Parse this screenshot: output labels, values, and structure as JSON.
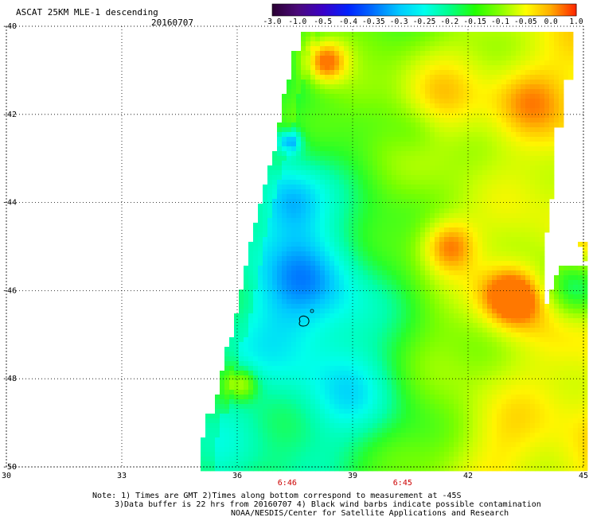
{
  "header": {
    "title": "ASCAT 25KM MLE-1 descending",
    "date": "20160707"
  },
  "colorbar": {
    "labels": [
      "-3.0",
      "-1.0",
      "-0.5",
      "-0.4",
      "-0.35",
      "-0.3",
      "-0.25",
      "-0.2",
      "-0.15",
      "-0.1",
      "-0.05",
      "0.0",
      "1.0"
    ],
    "colors": [
      "#2a0033",
      "#4b0a7a",
      "#3a00c8",
      "#0022ff",
      "#0070ff",
      "#00c8ff",
      "#00ffee",
      "#00ff88",
      "#22ff00",
      "#88ff00",
      "#ffff00",
      "#ffaa00",
      "#ff2200"
    ]
  },
  "map": {
    "lon_range": [
      30,
      45
    ],
    "lat_range": [
      -50,
      -40
    ],
    "lon_ticks": [
      "30",
      "33",
      "36",
      "39",
      "42",
      "45"
    ],
    "lat_ticks": [
      "-40",
      "-42",
      "-44",
      "-46",
      "-48",
      "-50"
    ],
    "grid": "dotted",
    "times": [
      {
        "label": "6:46",
        "lon": 37.3
      },
      {
        "label": "6:45",
        "lon": 40.3
      }
    ]
  },
  "notes": {
    "line1": "Note: 1) Times are GMT 2)Times along bottom correspond to measurement at -45S",
    "line2": "3)Data buffer is 22 hrs from 20160707 4) Black wind barbs indicate possible contamination",
    "line3": "NOAA/NESDIS/Center for Satellite Applications and Research"
  },
  "style": {
    "time_color": "#cc0000",
    "grid_color": "#000000"
  }
}
